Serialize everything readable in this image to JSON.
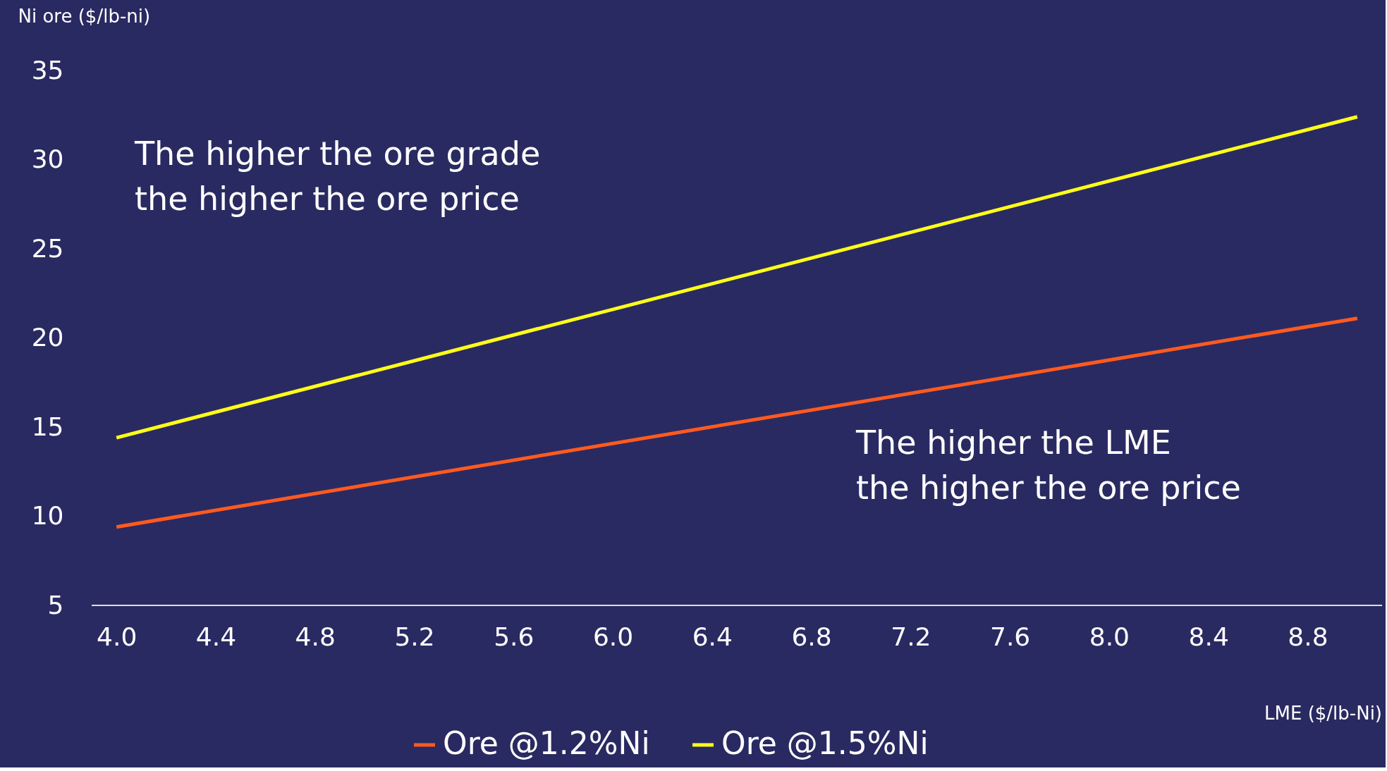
{
  "chart_data": {
    "type": "line",
    "xlabel": "LME ($/lb-Ni)",
    "ylabel": "Ni ore ($/lb-ni)",
    "x": [
      4.0,
      9.0
    ],
    "series": [
      {
        "name": "Ore @1.2%Ni",
        "color": "#ff5a1f",
        "values": [
          9.4,
          21.1
        ]
      },
      {
        "name": "Ore @1.5%Ni",
        "color": "#ffff1a",
        "values": [
          14.4,
          32.4
        ]
      }
    ],
    "xlim": [
      3.9,
      9.1
    ],
    "xticks": [
      {
        "value": 4.0,
        "label": "4.0"
      },
      4.4,
      4.8,
      5.2,
      5.6,
      {
        "value": 6.0,
        "label": "6.0"
      },
      6.4,
      6.8,
      7.2,
      7.6,
      {
        "value": 8.0,
        "label": "8.0"
      },
      8.4,
      8.8
    ],
    "ylim": [
      5,
      35
    ],
    "yticks": [
      5,
      10,
      15,
      20,
      25,
      30,
      35
    ],
    "grid": false,
    "legend": "bottom",
    "marker": "none",
    "line_style": "solid",
    "annotations": [
      "The higher the ore grade\nthe higher the ore price",
      "The higher the LME\nthe higher the ore price"
    ]
  }
}
